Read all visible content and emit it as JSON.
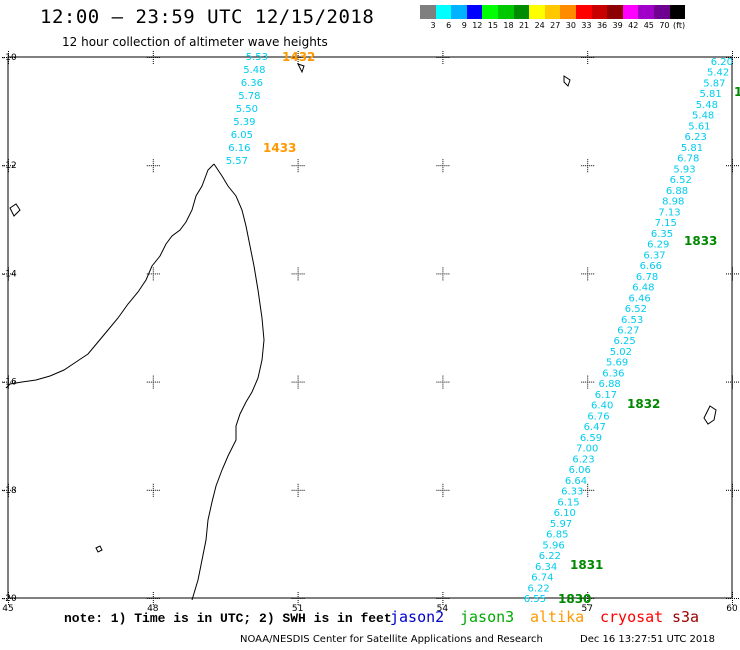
{
  "header": {
    "title": "12:00 – 23:59 UTC 12/15/2018",
    "subtitle": "12 hour collection of altimeter wave heights"
  },
  "colorbar": {
    "colors": [
      "#7f7f7f",
      "#00ffff",
      "#00b2ff",
      "#0000ff",
      "#00ff00",
      "#00c800",
      "#008c00",
      "#ffff00",
      "#ffc800",
      "#ff8c00",
      "#ff0000",
      "#c80000",
      "#8c0000",
      "#ff00ff",
      "#a000c8",
      "#700090",
      "#000000"
    ],
    "labels": [
      "3",
      "6",
      "9",
      "12",
      "15",
      "18",
      "21",
      "24",
      "27",
      "30",
      "33",
      "36",
      "39",
      "42",
      "45",
      "70",
      "(ft)"
    ]
  },
  "axes": {
    "x_ticks": [
      "45",
      "48",
      "51",
      "54",
      "57",
      "60"
    ],
    "y_ticks": [
      "-10",
      "-12",
      "-14",
      "-16",
      "-18",
      "-20"
    ]
  },
  "tracks": [
    {
      "satellite": "altika",
      "color": "#00ccee",
      "time_color": "#ff9900",
      "values": [
        "5.53",
        "5.48",
        "6.36",
        "5.78",
        "5.50",
        "5.39",
        "6.05",
        "6.16",
        "5.57"
      ],
      "times": [
        "1432",
        "1433"
      ]
    },
    {
      "satellite": "jason3",
      "color": "#00ccee",
      "time_color": "#008800",
      "values": [
        "6.20",
        "5.42",
        "5.87",
        "5.81",
        "5.48",
        "5.48",
        "5.61",
        "6.23",
        "5.81",
        "6.78",
        "5.93",
        "6.52",
        "6.88",
        "8.98",
        "7.13",
        "7.15",
        "6.35",
        "6.29",
        "6.37",
        "6.66",
        "6.78",
        "6.48",
        "6.46",
        "6.52",
        "6.53",
        "6.27",
        "6.25",
        "5.02",
        "5.69",
        "6.36",
        "6.88",
        "6.17",
        "6.40",
        "6.76",
        "6.47",
        "6.59",
        "7.00",
        "6.23",
        "6.06",
        "6.64",
        "6.33",
        "6.15",
        "6.10",
        "5.97",
        "6.85",
        "5.96",
        "6.22",
        "6.34",
        "6.74",
        "6.22",
        "6.55"
      ],
      "times": [
        "1833",
        "1832",
        "1831",
        "1830"
      ],
      "edge_label": "1"
    }
  ],
  "footer": {
    "note": "note: 1) Time is in UTC; 2) SWH is in feet",
    "satellites": [
      {
        "name": "jason2",
        "color": "#0000cc"
      },
      {
        "name": "jason3",
        "color": "#00aa00"
      },
      {
        "name": "altika",
        "color": "#ff9900"
      },
      {
        "name": "cryosat",
        "color": "#ff0000"
      },
      {
        "name": "s3a",
        "color": "#990000"
      }
    ],
    "credit": "NOAA/NESDIS Center for Satellite Applications and Research",
    "timestamp": "Dec 16 13:27:51 UTC 2018"
  }
}
